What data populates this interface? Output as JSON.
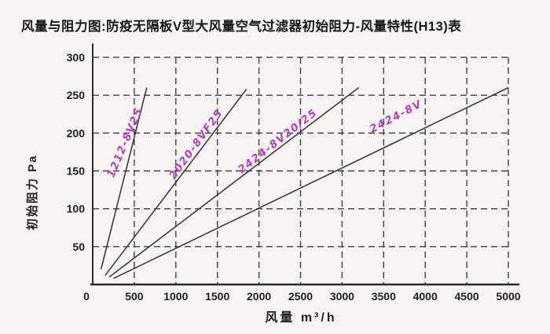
{
  "page": {
    "background": "#f6f5f2"
  },
  "chart_data": {
    "type": "line",
    "title": "风量与阻力图:防疫无隔板V型大风量空气过滤器初始阻力-风量特性(H13)表",
    "xlabel": "风量  m³/h",
    "ylabel": "初始阻力 Pa",
    "xlim": [
      0,
      5000
    ],
    "ylim": [
      0,
      310
    ],
    "x_ticks": [
      0,
      500,
      1000,
      1500,
      2000,
      2500,
      3000,
      3500,
      4000,
      4500,
      5000
    ],
    "y_ticks": [
      50,
      100,
      150,
      200,
      250,
      300
    ],
    "grid": "dashed-both-axes",
    "legend_position": "labels-on-lines",
    "colors": {
      "line": "#3b3b3b",
      "grid": "#3f3f3f",
      "axis": "#2b2b2b",
      "series_label": "#bb3cbb",
      "text": "#1c1c1c"
    },
    "series": [
      {
        "name": "1212-8V25",
        "x": [
          100,
          650
        ],
        "y": [
          20,
          260
        ]
      },
      {
        "name": "2020-8VF25",
        "x": [
          150,
          1850
        ],
        "y": [
          12,
          258
        ]
      },
      {
        "name": "2424-8V20/25",
        "x": [
          200,
          3200
        ],
        "y": [
          10,
          260
        ]
      },
      {
        "name": "2424-8V",
        "x": [
          250,
          5000
        ],
        "y": [
          8,
          260
        ]
      }
    ]
  }
}
